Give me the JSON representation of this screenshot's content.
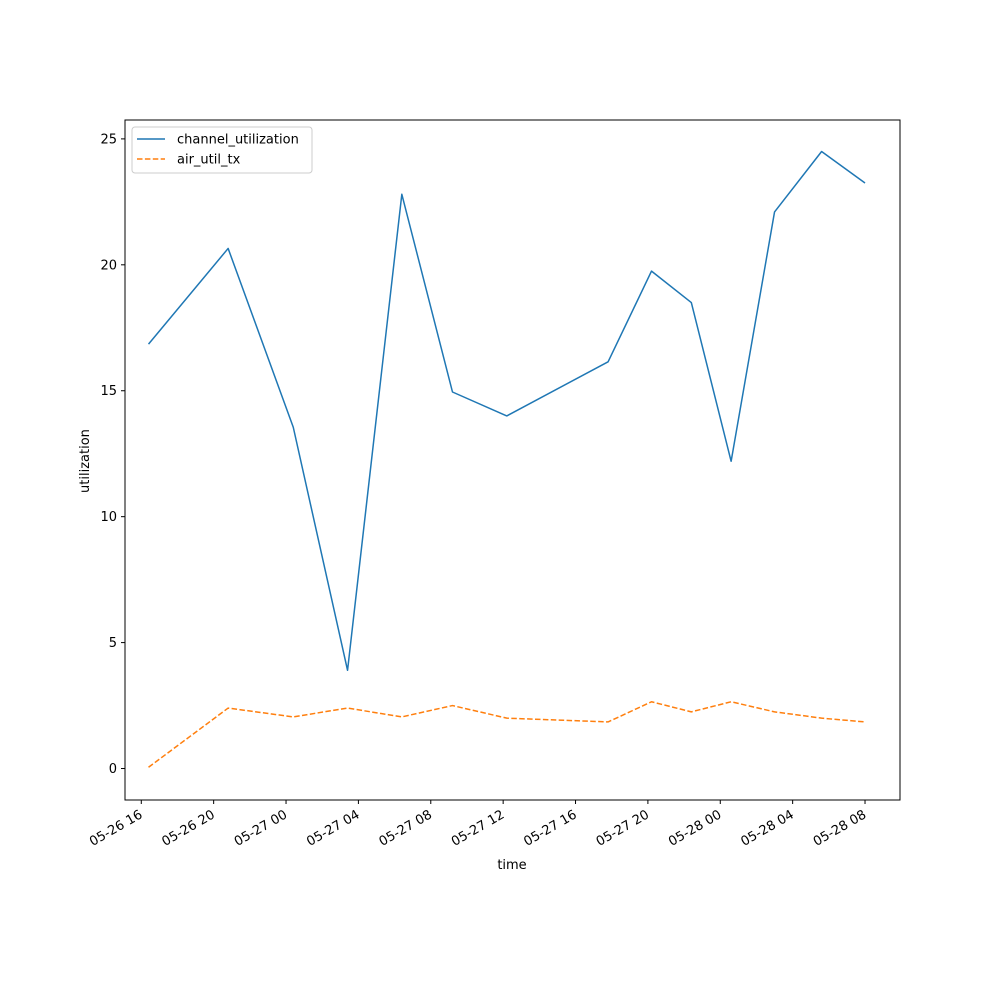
{
  "chart_data": {
    "type": "line",
    "xlabel": "time",
    "ylabel": "utilization",
    "xlim": [
      "2024-05-26 15:06",
      "2024-05-28 09:56"
    ],
    "ylim": [
      -1.25,
      25.75
    ],
    "yticks": [
      0,
      5,
      10,
      15,
      20,
      25
    ],
    "xticks": [
      {
        "t": "2024-05-26 16:00",
        "label": "05-26 16"
      },
      {
        "t": "2024-05-26 20:00",
        "label": "05-26 20"
      },
      {
        "t": "2024-05-27 00:00",
        "label": "05-27 00"
      },
      {
        "t": "2024-05-27 04:00",
        "label": "05-27 04"
      },
      {
        "t": "2024-05-27 08:00",
        "label": "05-27 08"
      },
      {
        "t": "2024-05-27 12:00",
        "label": "05-27 12"
      },
      {
        "t": "2024-05-27 16:00",
        "label": "05-27 16"
      },
      {
        "t": "2024-05-27 20:00",
        "label": "05-27 20"
      },
      {
        "t": "2024-05-28 00:00",
        "label": "05-28 00"
      },
      {
        "t": "2024-05-28 04:00",
        "label": "05-28 04"
      },
      {
        "t": "2024-05-28 08:00",
        "label": "05-28 08"
      }
    ],
    "grid": false,
    "legend": "upper-left",
    "series": [
      {
        "name": "channel_utilization",
        "color": "#1f77b4",
        "style": "solid",
        "points": [
          {
            "t": "2024-05-26 16:24",
            "y": 16.85
          },
          {
            "t": "2024-05-26 20:48",
            "y": 20.65
          },
          {
            "t": "2024-05-27 00:24",
            "y": 13.55
          },
          {
            "t": "2024-05-27 03:24",
            "y": 3.9
          },
          {
            "t": "2024-05-27 06:24",
            "y": 22.8
          },
          {
            "t": "2024-05-27 09:12",
            "y": 14.95
          },
          {
            "t": "2024-05-27 12:12",
            "y": 14.0
          },
          {
            "t": "2024-05-27 17:48",
            "y": 16.15
          },
          {
            "t": "2024-05-27 20:12",
            "y": 19.75
          },
          {
            "t": "2024-05-27 22:24",
            "y": 18.5
          },
          {
            "t": "2024-05-28 00:36",
            "y": 12.2
          },
          {
            "t": "2024-05-28 03:00",
            "y": 22.1
          },
          {
            "t": "2024-05-28 05:36",
            "y": 24.5
          },
          {
            "t": "2024-05-28 08:00",
            "y": 23.25
          }
        ]
      },
      {
        "name": "air_util_tx",
        "color": "#ff7f0e",
        "style": "dashed",
        "points": [
          {
            "t": "2024-05-26 16:24",
            "y": 0.05
          },
          {
            "t": "2024-05-26 20:48",
            "y": 2.4
          },
          {
            "t": "2024-05-27 00:24",
            "y": 2.05
          },
          {
            "t": "2024-05-27 03:24",
            "y": 2.4
          },
          {
            "t": "2024-05-27 06:24",
            "y": 2.05
          },
          {
            "t": "2024-05-27 09:12",
            "y": 2.5
          },
          {
            "t": "2024-05-27 12:12",
            "y": 2.0
          },
          {
            "t": "2024-05-27 17:48",
            "y": 1.85
          },
          {
            "t": "2024-05-27 20:12",
            "y": 2.65
          },
          {
            "t": "2024-05-27 22:24",
            "y": 2.25
          },
          {
            "t": "2024-05-28 00:36",
            "y": 2.65
          },
          {
            "t": "2024-05-28 03:00",
            "y": 2.25
          },
          {
            "t": "2024-05-28 05:36",
            "y": 2.0
          },
          {
            "t": "2024-05-28 08:00",
            "y": 1.85
          }
        ]
      }
    ]
  }
}
